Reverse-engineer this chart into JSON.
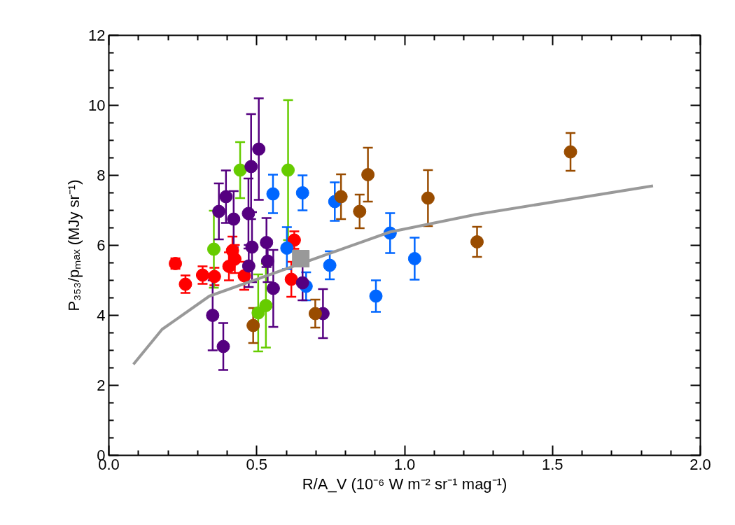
{
  "chart_data": {
    "type": "scatter",
    "xlabel": "R/A_V (10⁻⁶ W m⁻² sr⁻¹ mag⁻¹)",
    "ylabel": "P₃₅₃/pₘₐₓ (MJy sr⁻¹)",
    "xlim": [
      0,
      2
    ],
    "xticks": [
      {
        "value": 0,
        "label": "0.0"
      },
      0.5,
      {
        "value": 1,
        "label": "1.0"
      },
      1.5,
      {
        "value": 2,
        "label": "2.0"
      }
    ],
    "ylim": [
      0,
      12
    ],
    "yticks": [
      0,
      2,
      4,
      6,
      8,
      10,
      12
    ],
    "grid": false,
    "marker": "circle",
    "series": [
      {
        "color": "#ff0000",
        "x": [
          0.225,
          0.259,
          0.317,
          0.357,
          0.418,
          0.426,
          0.406,
          0.458,
          0.627,
          0.617
        ],
        "values": [
          5.48,
          4.89,
          5.15,
          5.11,
          5.85,
          5.61,
          5.4,
          5.13,
          6.15,
          5.03
        ],
        "errors": [
          0.15,
          0.25,
          0.25,
          0.25,
          0.4,
          0.4,
          0.4,
          0.4,
          0.25,
          0.5
        ]
      },
      {
        "color": "#66cc00",
        "x": [
          0.444,
          0.355,
          0.606,
          0.505,
          0.531
        ],
        "values": [
          8.15,
          5.89,
          8.15,
          4.07,
          4.28
        ],
        "errors": [
          0.8,
          1.1,
          2.0,
          1.1,
          1.2
        ]
      },
      {
        "color": "#0066ff",
        "x": [
          0.555,
          0.655,
          0.764,
          0.602,
          0.747,
          0.667,
          0.951,
          1.034,
          0.903
        ],
        "values": [
          7.47,
          7.5,
          7.25,
          5.92,
          5.43,
          4.83,
          6.35,
          5.62,
          4.55
        ],
        "errors": [
          0.55,
          0.5,
          0.55,
          0.6,
          0.4,
          0.4,
          0.57,
          0.6,
          0.45
        ]
      },
      {
        "color": "#550080",
        "x": [
          0.507,
          0.481,
          0.396,
          0.372,
          0.422,
          0.472,
          0.484,
          0.533,
          0.473,
          0.537,
          0.556,
          0.655,
          0.724,
          0.351,
          0.387
        ],
        "values": [
          8.75,
          8.25,
          7.39,
          6.97,
          6.75,
          6.91,
          5.95,
          6.08,
          5.41,
          5.55,
          4.77,
          4.93,
          4.05,
          4.0,
          3.11
        ],
        "errors": [
          1.45,
          1.5,
          0.75,
          0.8,
          0.8,
          1.0,
          1.0,
          0.7,
          0.6,
          0.6,
          1.1,
          0.5,
          0.7,
          1.0,
          0.67
        ]
      },
      {
        "color": "#994c00",
        "x": [
          0.785,
          0.876,
          0.848,
          1.079,
          1.245,
          0.698,
          0.488,
          1.561
        ],
        "values": [
          7.39,
          8.02,
          6.97,
          7.35,
          6.1,
          4.05,
          3.71,
          8.67
        ],
        "errors": [
          0.64,
          0.77,
          0.48,
          0.8,
          0.43,
          0.4,
          0.5,
          0.54
        ]
      },
      {
        "type": "line",
        "color": "#999999",
        "marker": "none",
        "x": [
          0.083,
          0.18,
          0.34,
          0.95,
          1.24,
          1.84
        ],
        "values": [
          2.6,
          3.6,
          4.55,
          6.38,
          6.88,
          7.7
        ]
      },
      {
        "color": "#999999",
        "marker": "square",
        "x": [
          0.649
        ],
        "values": [
          5.62
        ]
      }
    ]
  }
}
